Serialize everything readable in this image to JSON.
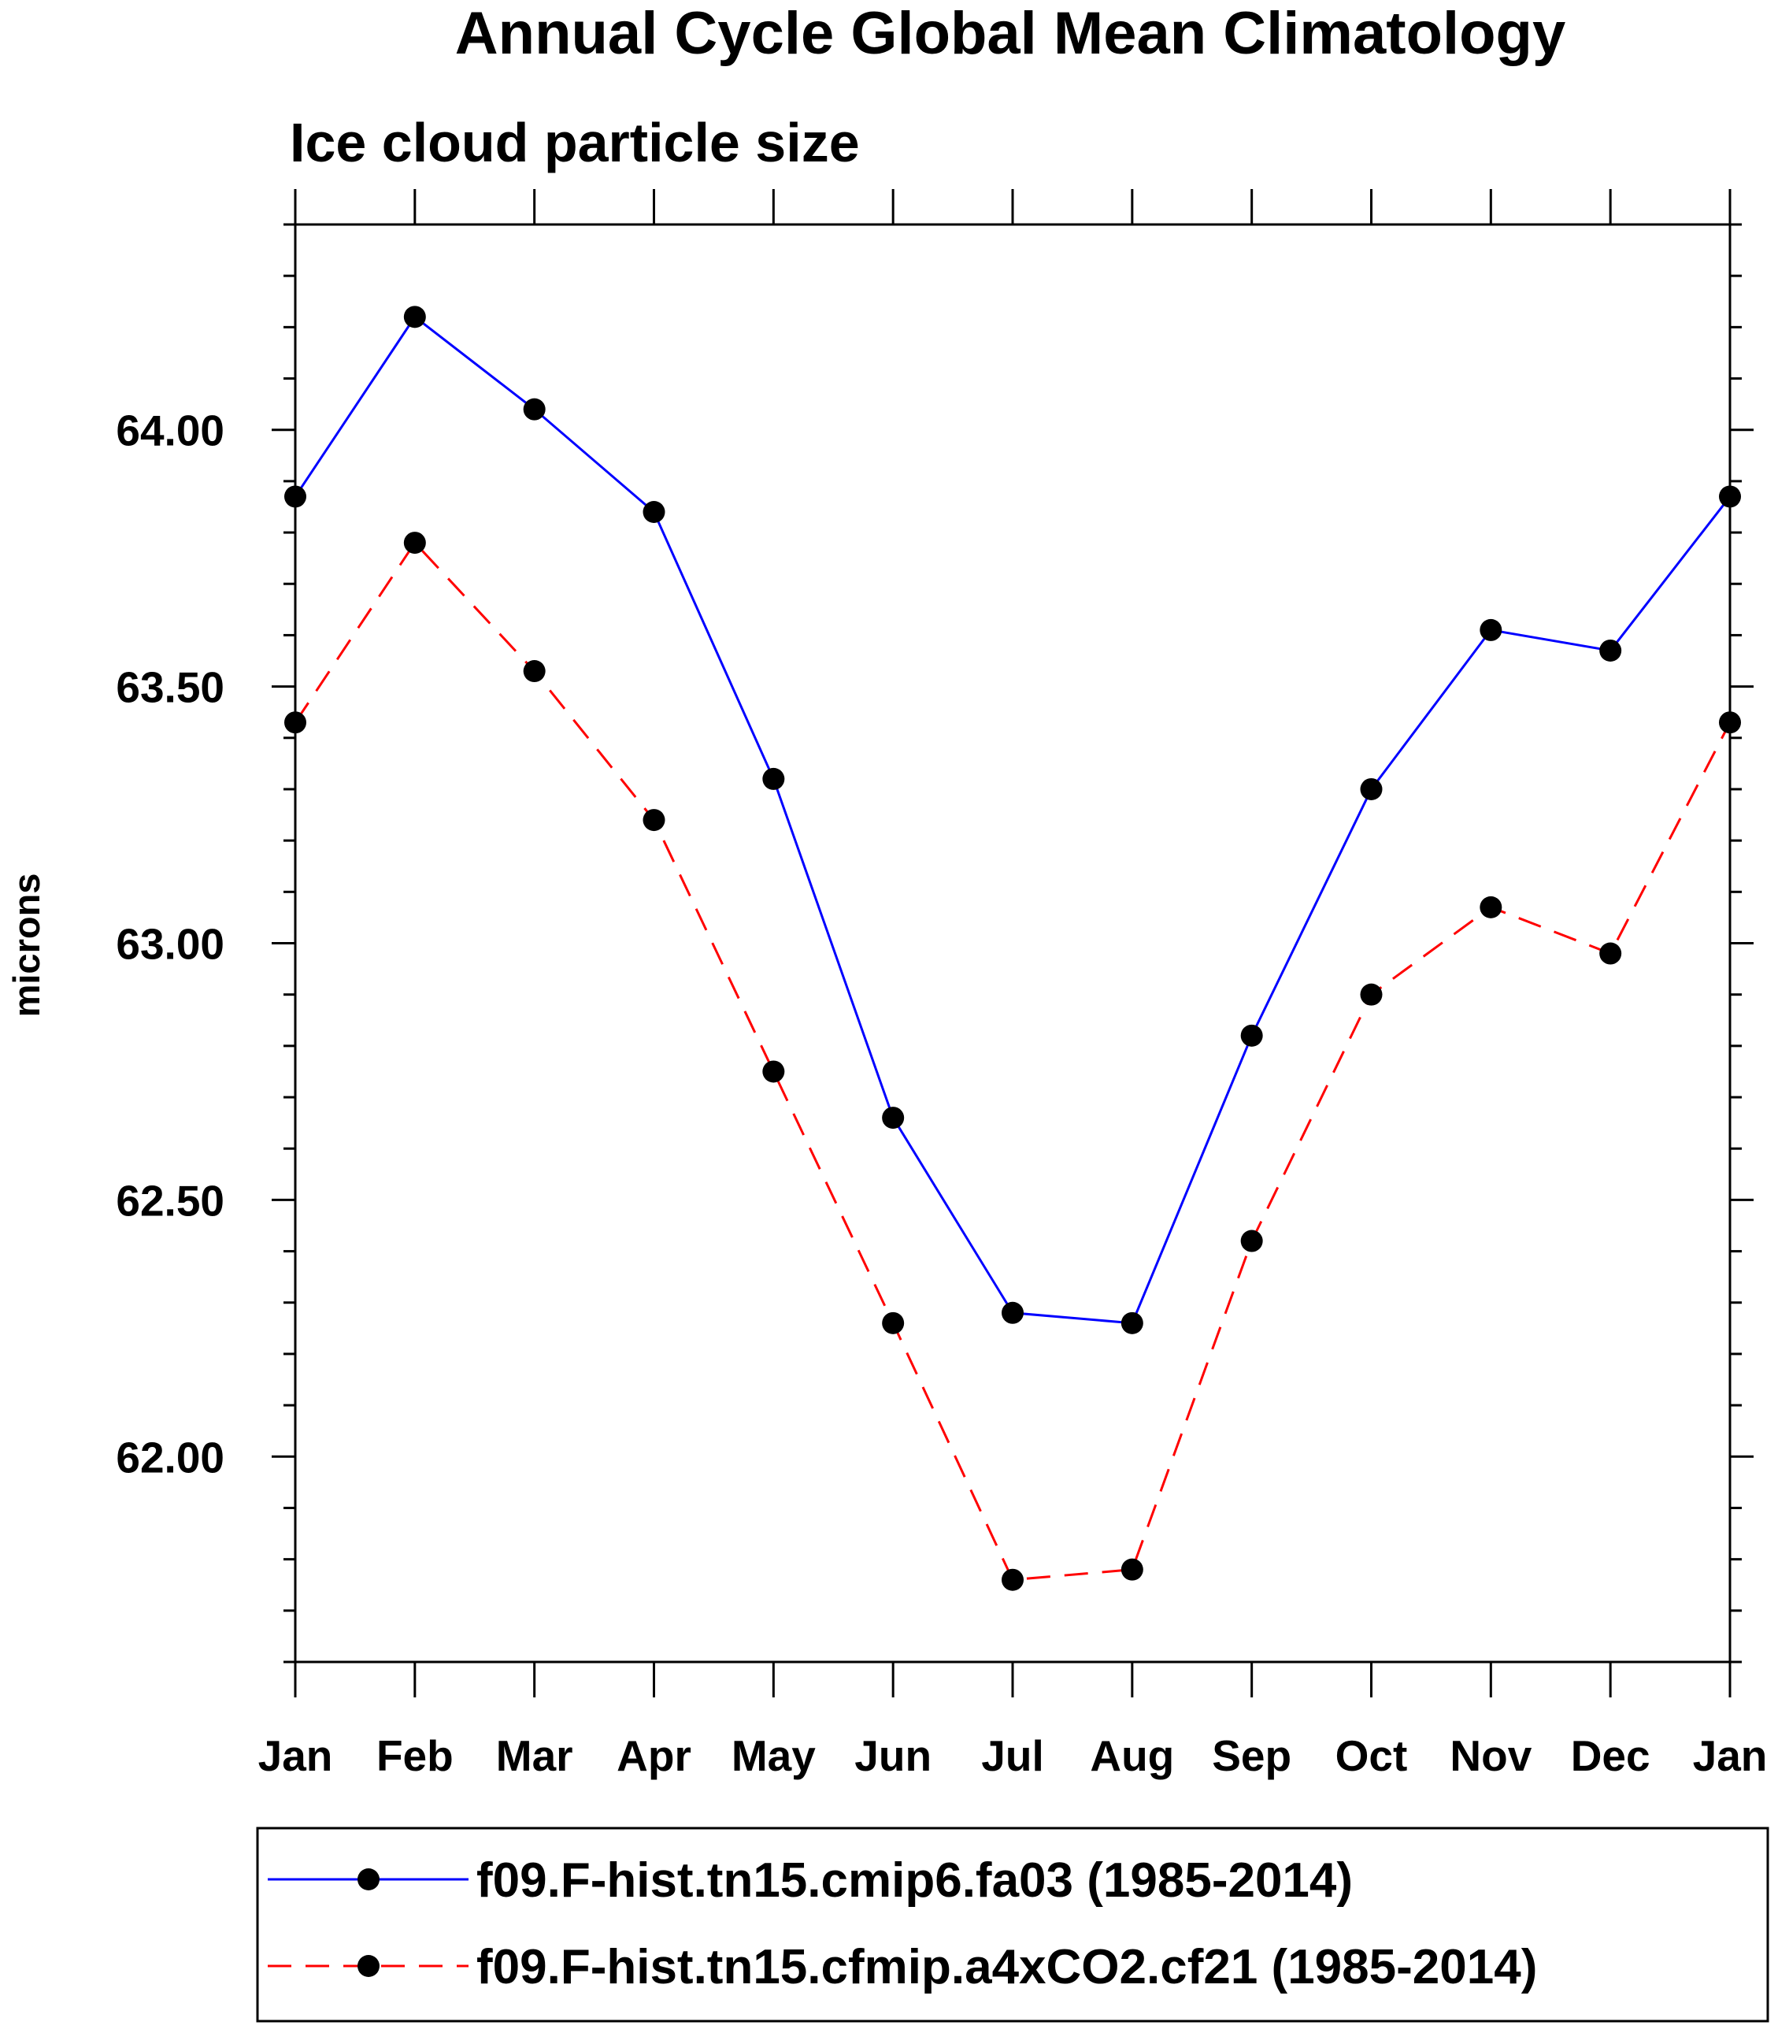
{
  "chart_data": {
    "type": "line",
    "title": "Annual Cycle Global Mean Climatology",
    "subtitle": "Ice cloud particle size",
    "xlabel": "",
    "ylabel": "microns",
    "categories": [
      "Jan",
      "Feb",
      "Mar",
      "Apr",
      "May",
      "Jun",
      "Jul",
      "Aug",
      "Sep",
      "Oct",
      "Nov",
      "Dec",
      "Jan"
    ],
    "ylim": [
      61.6,
      64.4
    ],
    "yticks": [
      62.0,
      62.5,
      63.0,
      63.5,
      64.0
    ],
    "ytick_labels": [
      "62.00",
      "62.50",
      "63.00",
      "63.50",
      "64.00"
    ],
    "y_minor_step": 0.1,
    "grid": false,
    "legend_position": "bottom",
    "series": [
      {
        "name": "f09.F-hist.tn15.cmip6.fa03 (1985-2014)",
        "color": "#0000ff",
        "line_style": "solid",
        "marker_color": "#000000",
        "values": [
          63.87,
          64.22,
          64.04,
          63.84,
          63.32,
          62.66,
          62.28,
          62.26,
          62.82,
          63.3,
          63.61,
          63.57,
          63.87
        ]
      },
      {
        "name": "f09.F-hist.tn15.cfmip.a4xCO2.cf21 (1985-2014)",
        "color": "#ff0000",
        "line_style": "dashed",
        "marker_color": "#000000",
        "values": [
          63.43,
          63.78,
          63.53,
          63.24,
          62.75,
          62.26,
          61.76,
          61.78,
          62.42,
          62.9,
          63.07,
          62.98,
          63.43
        ]
      }
    ]
  }
}
